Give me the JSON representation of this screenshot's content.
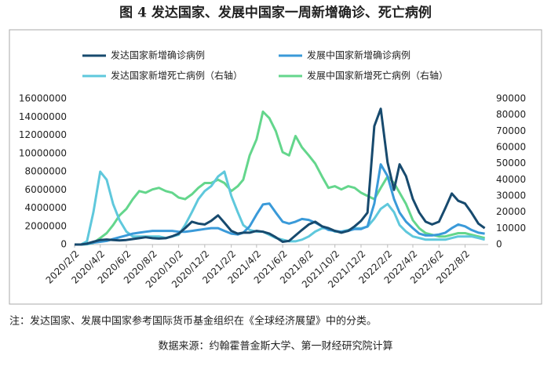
{
  "chart_data": {
    "type": "line",
    "title": "图 4 发达国家、发展中国家一周新增确诊、死亡病例",
    "note": "注：发达国家、发展中国家参考国际货币基金组织在《全球经济展望》中的分类。",
    "source": "数据来源：约翰霍普金斯大学、第一财经研究院计算",
    "x": [
      "2020/2/2",
      "2020/2/17",
      "2020/3/2",
      "2020/3/17",
      "2020/4/2",
      "2020/4/17",
      "2020/5/2",
      "2020/5/17",
      "2020/6/2",
      "2020/6/17",
      "2020/7/2",
      "2020/7/17",
      "2020/8/2",
      "2020/8/17",
      "2020/9/2",
      "2020/9/17",
      "2020/10/2",
      "2020/10/17",
      "2020/11/2",
      "2020/11/17",
      "2020/12/2",
      "2020/12/17",
      "2021/1/2",
      "2021/1/17",
      "2021/2/2",
      "2021/2/17",
      "2021/3/2",
      "2021/3/17",
      "2021/4/2",
      "2021/4/17",
      "2021/5/2",
      "2021/5/17",
      "2021/6/2",
      "2021/6/17",
      "2021/7/2",
      "2021/7/17",
      "2021/8/2",
      "2021/8/17",
      "2021/9/2",
      "2021/9/17",
      "2021/10/2",
      "2021/10/17",
      "2021/11/2",
      "2021/11/17",
      "2021/12/2",
      "2021/12/17",
      "2022/1/2",
      "2022/1/17",
      "2022/2/2",
      "2022/2/17",
      "2022/3/2",
      "2022/3/17",
      "2022/4/2",
      "2022/4/17",
      "2022/5/2",
      "2022/5/17",
      "2022/6/2",
      "2022/6/17",
      "2022/7/2",
      "2022/7/17",
      "2022/8/2",
      "2022/8/17",
      "2022/9/2",
      "2022/9/17"
    ],
    "xlim": [
      "2020/2/2",
      "2022/9/25"
    ],
    "xticks": [
      "2020/2/2",
      "2020/4/2",
      "2020/6/2",
      "2020/8/2",
      "2020/10/2",
      "2020/12/2",
      "2021/2/2",
      "2021/4/2",
      "2021/6/2",
      "2021/8/2",
      "2021/10/2",
      "2021/12/2",
      "2022/2/2",
      "2022/4/2",
      "2022/6/2",
      "2022/8/2"
    ],
    "ylim": [
      0,
      16000000
    ],
    "yticks": [
      0,
      2000000,
      4000000,
      6000000,
      8000000,
      10000000,
      12000000,
      14000000,
      16000000
    ],
    "y2lim": [
      0,
      90000
    ],
    "y2ticks": [
      0,
      10000,
      20000,
      30000,
      40000,
      50000,
      60000,
      70000,
      80000,
      90000
    ],
    "series": [
      {
        "name": "发达国家新增确诊病例",
        "color": "#174a6e",
        "values": [
          0,
          0,
          100000,
          300000,
          500000,
          550000,
          500000,
          450000,
          500000,
          600000,
          700000,
          800000,
          700000,
          650000,
          700000,
          900000,
          1200000,
          1800000,
          2500000,
          2300000,
          2200000,
          2600000,
          3200000,
          2400000,
          1500000,
          1200000,
          1300000,
          1300000,
          1500000,
          1400000,
          1200000,
          800000,
          300000,
          400000,
          1000000,
          1600000,
          2200000,
          2500000,
          2000000,
          1800000,
          1500000,
          1300000,
          1500000,
          2000000,
          2600000,
          3500000,
          13000000,
          14900000,
          9000000,
          6000000,
          8800000,
          7500000,
          5000000,
          3500000,
          2500000,
          2200000,
          2500000,
          4000000,
          5600000,
          4800000,
          4500000,
          3500000,
          2300000,
          1800000
        ]
      },
      {
        "name": "发展中国家新增确诊病例",
        "color": "#3a9ad9",
        "values": [
          0,
          0,
          50000,
          200000,
          300000,
          400000,
          600000,
          800000,
          1000000,
          1200000,
          1300000,
          1400000,
          1500000,
          1500000,
          1500000,
          1500000,
          1400000,
          1400000,
          1500000,
          1600000,
          1700000,
          1800000,
          1800000,
          1500000,
          1200000,
          1100000,
          1300000,
          2000000,
          3300000,
          4400000,
          4500000,
          3500000,
          2500000,
          2300000,
          2500000,
          2800000,
          2700000,
          2400000,
          2000000,
          1600000,
          1500000,
          1400000,
          1500000,
          1700000,
          1700000,
          2000000,
          4500000,
          8800000,
          7500000,
          5000000,
          3500000,
          2500000,
          1800000,
          1200000,
          1000000,
          1000000,
          1100000,
          1300000,
          1800000,
          2200000,
          2000000,
          1600000,
          1300000,
          1200000
        ]
      },
      {
        "name": "发达国家新增死亡病例（右轴）",
        "color": "#5fc8dc",
        "axis": "y2",
        "values": [
          0,
          0,
          2000,
          20000,
          45000,
          40000,
          25000,
          15000,
          8000,
          5000,
          5000,
          5000,
          5000,
          5000,
          4000,
          5000,
          6000,
          12000,
          20000,
          28000,
          33000,
          36000,
          42000,
          45000,
          30000,
          20000,
          12000,
          9000,
          8000,
          8000,
          6000,
          4000,
          3000,
          2000,
          2000,
          3000,
          5000,
          8000,
          10000,
          10000,
          8000,
          8000,
          9000,
          10000,
          10000,
          11000,
          16000,
          22000,
          25000,
          20000,
          12000,
          8000,
          5000,
          4000,
          3000,
          3000,
          3000,
          3000,
          4000,
          5000,
          5000,
          5000,
          4000,
          3000
        ]
      },
      {
        "name": "发展中国家新增死亡病例（右轴）",
        "color": "#64d68c",
        "axis": "y2",
        "values": [
          0,
          0,
          200,
          1000,
          4000,
          7000,
          12000,
          18000,
          22000,
          28000,
          33000,
          32000,
          34000,
          35000,
          33000,
          32000,
          29000,
          28000,
          31000,
          35000,
          38000,
          38000,
          40000,
          38000,
          33000,
          36000,
          40000,
          55000,
          65000,
          82000,
          78000,
          70000,
          57000,
          55000,
          67000,
          60000,
          55000,
          50000,
          42000,
          35000,
          36000,
          34000,
          36000,
          35000,
          32000,
          30000,
          28000,
          35000,
          42000,
          38000,
          32000,
          25000,
          15000,
          10000,
          7000,
          6000,
          5000,
          5000,
          6000,
          7000,
          7000,
          6000,
          5000,
          4000
        ]
      }
    ]
  }
}
